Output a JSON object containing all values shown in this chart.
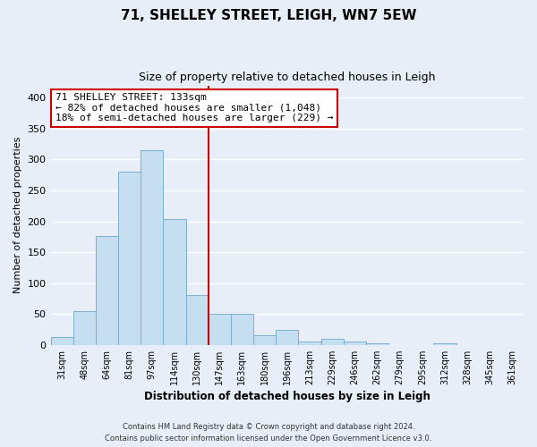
{
  "title": "71, SHELLEY STREET, LEIGH, WN7 5EW",
  "subtitle": "Size of property relative to detached houses in Leigh",
  "xlabel": "Distribution of detached houses by size in Leigh",
  "ylabel": "Number of detached properties",
  "bar_color": "#c5dff0",
  "bar_edge_color": "#7ab0d0",
  "background_color": "#e8eef8",
  "grid_color": "#ffffff",
  "categories": [
    "31sqm",
    "48sqm",
    "64sqm",
    "81sqm",
    "97sqm",
    "114sqm",
    "130sqm",
    "147sqm",
    "163sqm",
    "180sqm",
    "196sqm",
    "213sqm",
    "229sqm",
    "246sqm",
    "262sqm",
    "279sqm",
    "295sqm",
    "312sqm",
    "328sqm",
    "345sqm",
    "361sqm"
  ],
  "values": [
    13,
    54,
    176,
    281,
    315,
    204,
    81,
    51,
    50,
    16,
    25,
    5,
    10,
    5,
    3,
    0,
    0,
    2,
    0,
    0,
    0
  ],
  "ylim": [
    0,
    420
  ],
  "yticks": [
    0,
    50,
    100,
    150,
    200,
    250,
    300,
    350,
    400
  ],
  "vline_x": 6.5,
  "vline_color": "#cc0000",
  "annotation_title": "71 SHELLEY STREET: 133sqm",
  "annotation_line1": "← 82% of detached houses are smaller (1,048)",
  "annotation_line2": "18% of semi-detached houses are larger (229) →",
  "annotation_box_color": "#ffffff",
  "annotation_box_edge": "#cc0000",
  "footer_line1": "Contains HM Land Registry data © Crown copyright and database right 2024.",
  "footer_line2": "Contains public sector information licensed under the Open Government Licence v3.0."
}
